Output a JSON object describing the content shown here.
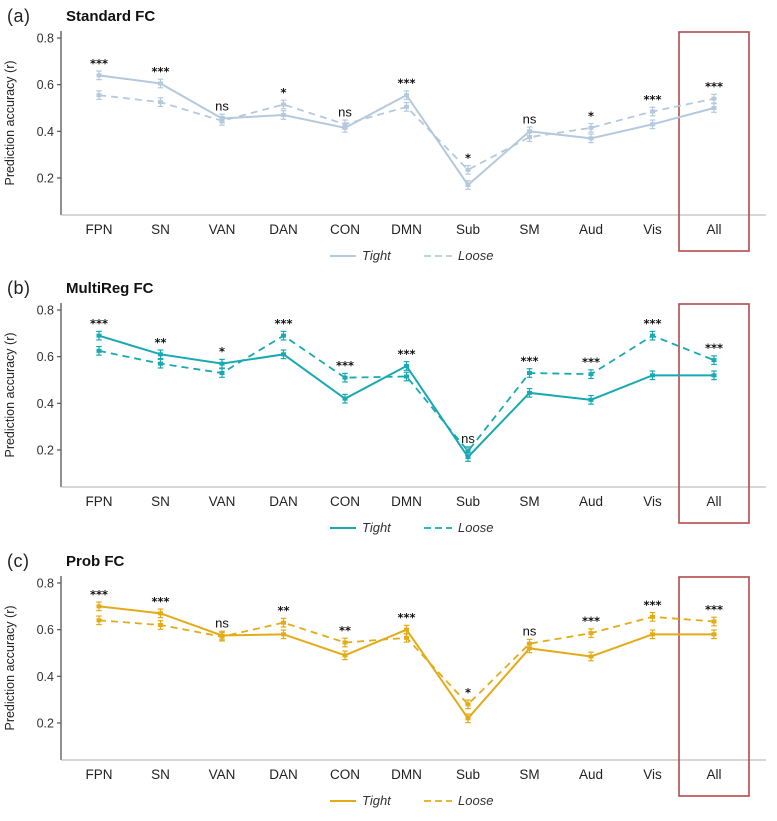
{
  "figure": {
    "background": "#ffffff",
    "ylabel": "Prediction accuracy (r)",
    "legend_labels": [
      "Tight",
      "Loose"
    ],
    "highlight_box_color": "#b14a4a",
    "axis_color": "#555555",
    "baseline_color": "#b3acac"
  },
  "chart_data": [
    {
      "type": "line",
      "panel_label": "(a)",
      "title": "Standard FC",
      "color": "#b5c9dd",
      "ylabel": "Prediction accuracy (r)",
      "yticks": [
        0.2,
        0.4,
        0.6,
        0.8
      ],
      "ylim": [
        0.05,
        0.85
      ],
      "grid": false,
      "legend_position": "bottom-center",
      "categories": [
        "FPN",
        "SN",
        "VAN",
        "DAN",
        "CON",
        "DMN",
        "Sub",
        "SM",
        "Aud",
        "Vis",
        "All"
      ],
      "series": [
        {
          "name": "Tight",
          "style": "solid",
          "values": [
            0.64,
            0.605,
            0.455,
            0.47,
            0.415,
            0.555,
            0.17,
            0.4,
            0.37,
            0.43,
            0.5
          ]
        },
        {
          "name": "Loose",
          "style": "dashed",
          "values": [
            0.555,
            0.525,
            0.445,
            0.515,
            0.43,
            0.505,
            0.235,
            0.375,
            0.415,
            0.485,
            0.54
          ]
        }
      ],
      "error_bar": 0.012,
      "significance": [
        "***",
        "***",
        "ns",
        "*",
        "ns",
        "***",
        "*",
        "ns",
        "*",
        "***",
        "***"
      ],
      "highlight_category": "All"
    },
    {
      "type": "line",
      "panel_label": "(b)",
      "title": "MultiReg FC",
      "color": "#18a9b2",
      "ylabel": "Prediction accuracy (r)",
      "yticks": [
        0.2,
        0.4,
        0.6,
        0.8
      ],
      "ylim": [
        0.05,
        0.85
      ],
      "grid": false,
      "legend_position": "bottom-center",
      "categories": [
        "FPN",
        "SN",
        "VAN",
        "DAN",
        "CON",
        "DMN",
        "Sub",
        "SM",
        "Aud",
        "Vis",
        "All"
      ],
      "series": [
        {
          "name": "Tight",
          "style": "solid",
          "values": [
            0.69,
            0.61,
            0.57,
            0.61,
            0.42,
            0.56,
            0.17,
            0.445,
            0.415,
            0.52,
            0.52
          ]
        },
        {
          "name": "Loose",
          "style": "dashed",
          "values": [
            0.625,
            0.57,
            0.53,
            0.69,
            0.51,
            0.515,
            0.195,
            0.53,
            0.525,
            0.69,
            0.585
          ]
        }
      ],
      "error_bar": 0.012,
      "significance": [
        "***",
        "**",
        "*",
        "***",
        "***",
        "***",
        "ns",
        "***",
        "***",
        "***",
        "***"
      ],
      "highlight_category": "All"
    },
    {
      "type": "line",
      "panel_label": "(c)",
      "title": "Prob FC",
      "color": "#e3ab17",
      "ylabel": "Prediction accuracy (r)",
      "yticks": [
        0.2,
        0.4,
        0.6,
        0.8
      ],
      "ylim": [
        0.05,
        0.85
      ],
      "grid": false,
      "legend_position": "bottom-center",
      "categories": [
        "FPN",
        "SN",
        "VAN",
        "DAN",
        "CON",
        "DMN",
        "Sub",
        "SM",
        "Aud",
        "Vis",
        "All"
      ],
      "series": [
        {
          "name": "Tight",
          "style": "solid",
          "values": [
            0.7,
            0.67,
            0.575,
            0.58,
            0.49,
            0.6,
            0.22,
            0.52,
            0.485,
            0.58,
            0.58
          ]
        },
        {
          "name": "Loose",
          "style": "dashed",
          "values": [
            0.64,
            0.62,
            0.57,
            0.63,
            0.545,
            0.565,
            0.28,
            0.54,
            0.585,
            0.655,
            0.635
          ]
        }
      ],
      "error_bar": 0.012,
      "significance": [
        "***",
        "***",
        "ns",
        "**",
        "**",
        "***",
        "*",
        "ns",
        "***",
        "***",
        "***"
      ],
      "highlight_category": "All"
    }
  ]
}
